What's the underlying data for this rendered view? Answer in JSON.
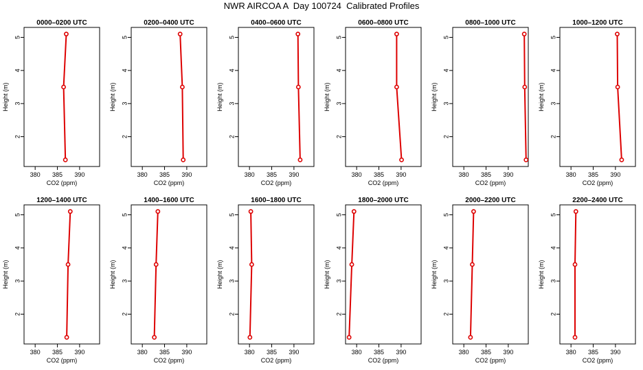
{
  "title": "NWR AIRCOA A  Day 100724  Calibrated Profiles",
  "colors": {
    "profile": "#dd0000",
    "axis": "#000000",
    "background": "#ffffff"
  },
  "chart_data": [
    {
      "type": "line",
      "title": "0000–0200 UTC",
      "xlabel": "CO2 (ppm)",
      "ylabel": "Height (m)",
      "xlim": [
        377.5,
        394.5
      ],
      "ylim": [
        1.1,
        5.3
      ],
      "xticks": [
        380,
        385,
        390
      ],
      "yticks": [
        2,
        3,
        4,
        5
      ],
      "grid": false,
      "series": [
        {
          "x": [
            386.8,
            386.4,
            387.0
          ],
          "y": [
            1.3,
            3.5,
            5.1
          ]
        }
      ]
    },
    {
      "type": "line",
      "title": "0200–0400 UTC",
      "xlabel": "CO2 (ppm)",
      "ylabel": "Height (m)",
      "xlim": [
        377.5,
        394.5
      ],
      "ylim": [
        1.1,
        5.3
      ],
      "xticks": [
        380,
        385,
        390
      ],
      "yticks": [
        2,
        3,
        4,
        5
      ],
      "grid": false,
      "series": [
        {
          "x": [
            389.2,
            389.0,
            388.5
          ],
          "y": [
            1.3,
            3.5,
            5.1
          ]
        }
      ]
    },
    {
      "type": "line",
      "title": "0400–0600 UTC",
      "xlabel": "CO2 (ppm)",
      "ylabel": "Height (m)",
      "xlim": [
        377.5,
        394.5
      ],
      "ylim": [
        1.1,
        5.3
      ],
      "xticks": [
        380,
        385,
        390
      ],
      "yticks": [
        2,
        3,
        4,
        5
      ],
      "grid": false,
      "series": [
        {
          "x": [
            391.4,
            391.0,
            390.9
          ],
          "y": [
            1.3,
            3.5,
            5.1
          ]
        }
      ]
    },
    {
      "type": "line",
      "title": "0600–0800 UTC",
      "xlabel": "CO2 (ppm)",
      "ylabel": "Height (m)",
      "xlim": [
        377.5,
        394.5
      ],
      "ylim": [
        1.1,
        5.3
      ],
      "xticks": [
        380,
        385,
        390
      ],
      "yticks": [
        2,
        3,
        4,
        5
      ],
      "grid": false,
      "series": [
        {
          "x": [
            390.1,
            389.0,
            389.0
          ],
          "y": [
            1.3,
            3.5,
            5.1
          ]
        }
      ]
    },
    {
      "type": "line",
      "title": "0800–1000 UTC",
      "xlabel": "CO2 (ppm)",
      "ylabel": "Height (m)",
      "xlim": [
        377.5,
        394.5
      ],
      "ylim": [
        1.1,
        5.3
      ],
      "xticks": [
        380,
        385,
        390
      ],
      "yticks": [
        2,
        3,
        4,
        5
      ],
      "grid": false,
      "series": [
        {
          "x": [
            394.0,
            393.7,
            393.6
          ],
          "y": [
            1.3,
            3.5,
            5.1
          ]
        }
      ]
    },
    {
      "type": "line",
      "title": "1000–1200 UTC",
      "xlabel": "CO2 (ppm)",
      "ylabel": "Height (m)",
      "xlim": [
        377.5,
        394.5
      ],
      "ylim": [
        1.1,
        5.3
      ],
      "xticks": [
        380,
        385,
        390
      ],
      "yticks": [
        2,
        3,
        4,
        5
      ],
      "grid": false,
      "series": [
        {
          "x": [
            391.4,
            390.5,
            390.4
          ],
          "y": [
            1.3,
            3.5,
            5.1
          ]
        }
      ]
    },
    {
      "type": "line",
      "title": "1200–1400 UTC",
      "xlabel": "CO2 (ppm)",
      "ylabel": "Height (m)",
      "xlim": [
        377.5,
        394.5
      ],
      "ylim": [
        1.1,
        5.3
      ],
      "xticks": [
        380,
        385,
        390
      ],
      "yticks": [
        2,
        3,
        4,
        5
      ],
      "grid": false,
      "series": [
        {
          "x": [
            387.1,
            387.4,
            387.9
          ],
          "y": [
            1.3,
            3.5,
            5.1
          ]
        }
      ]
    },
    {
      "type": "line",
      "title": "1400–1600 UTC",
      "xlabel": "CO2 (ppm)",
      "ylabel": "Height (m)",
      "xlim": [
        377.5,
        394.5
      ],
      "ylim": [
        1.1,
        5.3
      ],
      "xticks": [
        380,
        385,
        390
      ],
      "yticks": [
        2,
        3,
        4,
        5
      ],
      "grid": false,
      "series": [
        {
          "x": [
            382.7,
            383.1,
            383.5
          ],
          "y": [
            1.3,
            3.5,
            5.1
          ]
        }
      ]
    },
    {
      "type": "line",
      "title": "1600–1800 UTC",
      "xlabel": "CO2 (ppm)",
      "ylabel": "Height (m)",
      "xlim": [
        377.5,
        394.5
      ],
      "ylim": [
        1.1,
        5.3
      ],
      "xticks": [
        380,
        385,
        390
      ],
      "yticks": [
        2,
        3,
        4,
        5
      ],
      "grid": false,
      "series": [
        {
          "x": [
            380.1,
            380.5,
            380.3
          ],
          "y": [
            1.3,
            3.5,
            5.1
          ]
        }
      ]
    },
    {
      "type": "line",
      "title": "1800–2000 UTC",
      "xlabel": "CO2 (ppm)",
      "ylabel": "Height (m)",
      "xlim": [
        377.5,
        394.5
      ],
      "ylim": [
        1.1,
        5.3
      ],
      "xticks": [
        380,
        385,
        390
      ],
      "yticks": [
        2,
        3,
        4,
        5
      ],
      "grid": false,
      "series": [
        {
          "x": [
            378.3,
            378.9,
            379.4
          ],
          "y": [
            1.3,
            3.5,
            5.1
          ]
        }
      ]
    },
    {
      "type": "line",
      "title": "2000–2200 UTC",
      "xlabel": "CO2 (ppm)",
      "ylabel": "Height (m)",
      "xlim": [
        377.5,
        394.5
      ],
      "ylim": [
        1.1,
        5.3
      ],
      "xticks": [
        380,
        385,
        390
      ],
      "yticks": [
        2,
        3,
        4,
        5
      ],
      "grid": false,
      "series": [
        {
          "x": [
            381.5,
            381.9,
            382.2
          ],
          "y": [
            1.3,
            3.5,
            5.1
          ]
        }
      ]
    },
    {
      "type": "line",
      "title": "2200–2400 UTC",
      "xlabel": "CO2 (ppm)",
      "ylabel": "Height (m)",
      "xlim": [
        377.5,
        394.5
      ],
      "ylim": [
        1.1,
        5.3
      ],
      "xticks": [
        380,
        385,
        390
      ],
      "yticks": [
        2,
        3,
        4,
        5
      ],
      "grid": false,
      "series": [
        {
          "x": [
            380.9,
            380.9,
            381.1
          ],
          "y": [
            1.3,
            3.5,
            5.1
          ]
        }
      ]
    }
  ]
}
